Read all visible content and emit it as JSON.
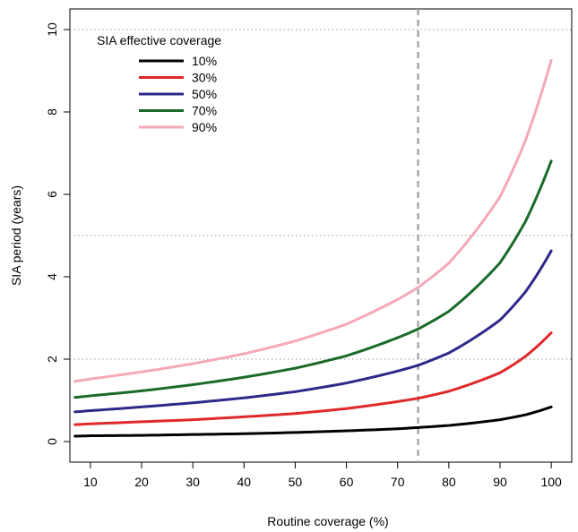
{
  "chart_data": {
    "type": "line",
    "xlabel": "Routine coverage (%)",
    "ylabel": "SIA period (years)",
    "xlim": [
      6,
      104
    ],
    "ylim": [
      -0.5,
      10.5
    ],
    "xticks": [
      10,
      20,
      30,
      40,
      50,
      60,
      70,
      80,
      90,
      100
    ],
    "yticks": [
      0,
      2,
      4,
      6,
      8,
      10
    ],
    "hgrid_dotted": [
      2,
      5,
      10
    ],
    "vline_dashed": 74,
    "legend": {
      "title": "SIA effective coverage",
      "position": "top-left"
    },
    "x": [
      7,
      10,
      20,
      30,
      40,
      50,
      60,
      70,
      74,
      80,
      90,
      95,
      100
    ],
    "series": [
      {
        "name": "10%",
        "color": "#000000",
        "values": [
          0.13,
          0.14,
          0.15,
          0.17,
          0.19,
          0.22,
          0.26,
          0.31,
          0.34,
          0.39,
          0.53,
          0.65,
          0.84
        ]
      },
      {
        "name": "30%",
        "color": "#e0292a",
        "values": [
          0.41,
          0.43,
          0.48,
          0.53,
          0.6,
          0.68,
          0.8,
          0.97,
          1.05,
          1.22,
          1.67,
          2.07,
          2.64
        ]
      },
      {
        "name": "50%",
        "color": "#2e2889",
        "values": [
          0.72,
          0.75,
          0.84,
          0.94,
          1.06,
          1.21,
          1.42,
          1.71,
          1.85,
          2.15,
          2.95,
          3.64,
          4.63
        ]
      },
      {
        "name": "70%",
        "color": "#1a6b2a",
        "values": [
          1.07,
          1.11,
          1.23,
          1.38,
          1.56,
          1.78,
          2.08,
          2.52,
          2.73,
          3.16,
          4.34,
          5.35,
          6.81
        ]
      },
      {
        "name": "90%",
        "color": "#f5a9b8",
        "values": [
          1.46,
          1.52,
          1.69,
          1.89,
          2.13,
          2.44,
          2.85,
          3.45,
          3.74,
          4.33,
          5.94,
          7.32,
          9.25
        ]
      }
    ]
  }
}
